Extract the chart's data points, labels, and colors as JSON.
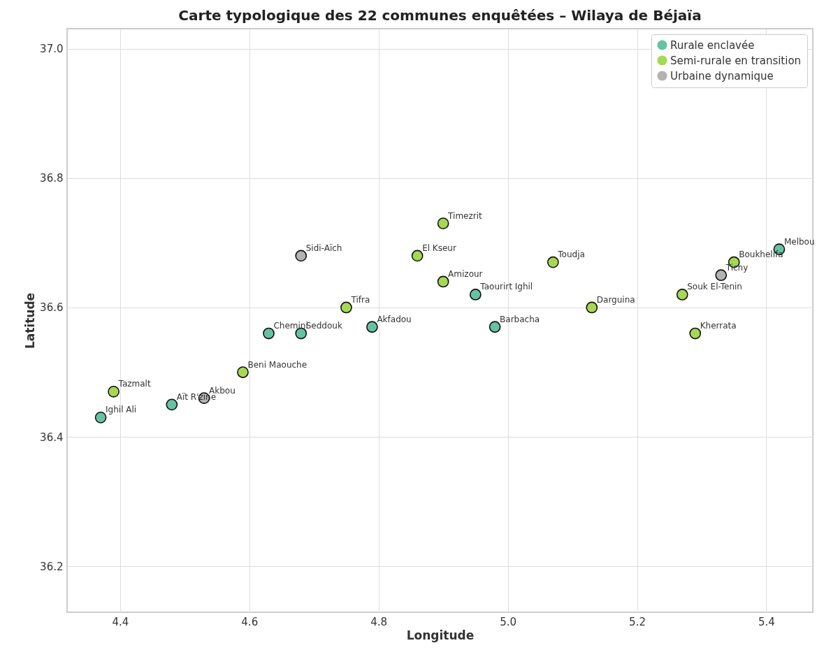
{
  "chart_data": {
    "type": "scatter",
    "title": "Carte typologique des 22 communes enquêtées – Wilaya de Béjaïa",
    "xlabel": "Longitude",
    "ylabel": "Latitude",
    "xlim": [
      4.318,
      5.472
    ],
    "ylim": [
      36.129,
      37.031
    ],
    "xticks": [
      4.4,
      4.6,
      4.8,
      {
        "value": 5,
        "label": "5.0"
      },
      5.2,
      5.4
    ],
    "yticks": [
      36.2,
      36.4,
      36.6,
      36.8,
      {
        "value": 37,
        "label": "37.0"
      }
    ],
    "grid": true,
    "legend": "top right",
    "marker": "circle",
    "series": [
      {
        "name": "Rurale enclavée",
        "color": "#66c2a5",
        "x": [
          4.37,
          4.48,
          4.63,
          4.68,
          4.79,
          4.95,
          4.98,
          5.42
        ],
        "values": [
          36.43,
          36.45,
          36.56,
          36.56,
          36.57,
          36.62,
          36.57,
          36.69
        ]
      },
      {
        "name": "Semi-rurale en transition",
        "color": "#a6d854",
        "x": [
          4.39,
          4.59,
          4.75,
          4.86,
          4.9,
          4.9,
          5.07,
          5.13,
          5.27,
          5.29,
          5.35
        ],
        "values": [
          36.47,
          36.5,
          36.6,
          36.68,
          36.73,
          36.64,
          36.67,
          36.6,
          36.62,
          36.56,
          36.67
        ]
      },
      {
        "name": "Urbaine dynamique",
        "color": "#b3b3b3",
        "x": [
          4.53,
          4.68,
          5.33
        ],
        "values": [
          36.46,
          36.68,
          36.65
        ]
      }
    ],
    "annotations": [
      {
        "text": "Ighil Ali",
        "x": 4.37,
        "y": 36.43
      },
      {
        "text": "Aït R'zine",
        "x": 4.48,
        "y": 36.45
      },
      {
        "text": "Chemini",
        "x": 4.63,
        "y": 36.56
      },
      {
        "text": "Seddouk",
        "x": 4.68,
        "y": 36.56
      },
      {
        "text": "Akfadou",
        "x": 4.79,
        "y": 36.57
      },
      {
        "text": "Taourirt Ighil",
        "x": 4.95,
        "y": 36.62
      },
      {
        "text": "Barbacha",
        "x": 4.98,
        "y": 36.57
      },
      {
        "text": "Melbou",
        "x": 5.42,
        "y": 36.69
      },
      {
        "text": "Tazmalt",
        "x": 4.39,
        "y": 36.47
      },
      {
        "text": "Beni Maouche",
        "x": 4.59,
        "y": 36.5
      },
      {
        "text": "Tifra",
        "x": 4.75,
        "y": 36.6
      },
      {
        "text": "El Kseur",
        "x": 4.86,
        "y": 36.68
      },
      {
        "text": "Timezrit",
        "x": 4.9,
        "y": 36.73
      },
      {
        "text": "Amizour",
        "x": 4.9,
        "y": 36.64
      },
      {
        "text": "Toudja",
        "x": 5.07,
        "y": 36.67
      },
      {
        "text": "Darguina",
        "x": 5.13,
        "y": 36.6
      },
      {
        "text": "Souk El-Tenin",
        "x": 5.27,
        "y": 36.62
      },
      {
        "text": "Kherrata",
        "x": 5.29,
        "y": 36.56
      },
      {
        "text": "Boukhelifa",
        "x": 5.35,
        "y": 36.67
      },
      {
        "text": "Akbou",
        "x": 4.53,
        "y": 36.46
      },
      {
        "text": "Sidi-Aïch",
        "x": 4.68,
        "y": 36.68
      },
      {
        "text": "Tichy",
        "x": 5.33,
        "y": 36.65
      }
    ]
  }
}
